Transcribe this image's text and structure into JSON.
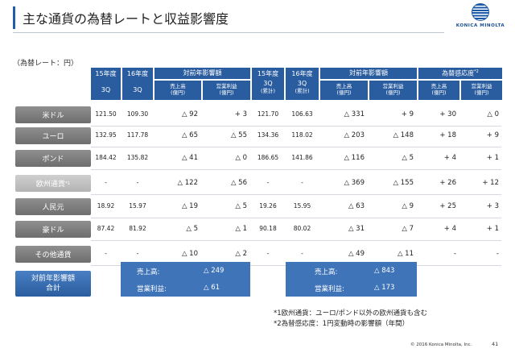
{
  "header": {
    "title": "主な通貨の為替レートと収益影響度",
    "logo_text": "KONICA MINOLTA"
  },
  "unit_note": "（為替レート：円）",
  "columns": {
    "fy15": "15年度",
    "fy16": "16年度",
    "q3": "3Q",
    "impact_yoy": "対前年影響額",
    "fy15c": "15年度",
    "fy16c": "16年度",
    "q3_cum": "3Q",
    "cum": "(累計)",
    "impact_yoy_cum": "対前年影響額",
    "sensitivity": "為替感応度",
    "sensitivity_sup": "*2",
    "sales": "売上高",
    "op_profit": "営業利益",
    "unit": "(億円)"
  },
  "rows": [
    {
      "label": "米ドル",
      "sup": "",
      "light": false,
      "r15": "121.50",
      "r16": "109.30",
      "s": "△ 92",
      "o": "+ 3",
      "c15": "121.70",
      "c16": "106.63",
      "cs": "△ 331",
      "co": "+ 9",
      "ss": "+ 30",
      "so": "△ 0"
    },
    {
      "label": "ユーロ",
      "sup": "",
      "light": false,
      "r15": "132.95",
      "r16": "117.78",
      "s": "△ 65",
      "o": "△ 55",
      "c15": "134.36",
      "c16": "118.02",
      "cs": "△ 203",
      "co": "△ 148",
      "ss": "+ 18",
      "so": "+ 9"
    },
    {
      "label": "ポンド",
      "sup": "",
      "light": false,
      "r15": "184.42",
      "r16": "135.82",
      "s": "△ 41",
      "o": "△ 0",
      "c15": "186.65",
      "c16": "141.86",
      "cs": "△ 116",
      "co": "△ 5",
      "ss": "+ 4",
      "so": "+ 1"
    },
    {
      "label": "欧州通貨",
      "sup": "*1",
      "light": true,
      "r15": "-",
      "r16": "-",
      "s": "△ 122",
      "o": "△ 56",
      "c15": "-",
      "c16": "-",
      "cs": "△ 369",
      "co": "△ 155",
      "ss": "+ 26",
      "so": "+ 12"
    },
    {
      "label": "人民元",
      "sup": "",
      "light": false,
      "r15": "18.92",
      "r16": "15.97",
      "s": "△ 19",
      "o": "△ 5",
      "c15": "19.26",
      "c16": "15.95",
      "cs": "△ 63",
      "co": "△ 9",
      "ss": "+ 25",
      "so": "+ 3"
    },
    {
      "label": "豪ドル",
      "sup": "",
      "light": false,
      "r15": "87.42",
      "r16": "81.92",
      "s": "△ 5",
      "o": "△ 1",
      "c15": "90.18",
      "c16": "80.02",
      "cs": "△ 31",
      "co": "△ 7",
      "ss": "+ 4",
      "so": "+ 1"
    },
    {
      "label": "その他通貨",
      "sup": "",
      "light": false,
      "r15": "-",
      "r16": "-",
      "s": "△ 10",
      "o": "△ 2",
      "c15": "-",
      "c16": "-",
      "cs": "△ 49",
      "co": "△ 11",
      "ss": "-",
      "so": "-"
    }
  ],
  "total": {
    "label_line1": "対前年影響額",
    "label_line2": "合計",
    "q_sales_label": "売上高:",
    "q_sales_value": "△ 249",
    "q_op_label": "営業利益:",
    "q_op_value": "△ 61",
    "cum_sales_label": "売上高:",
    "cum_sales_value": "△ 843",
    "cum_op_label": "営業利益:",
    "cum_op_value": "△ 173"
  },
  "footnotes": {
    "note1": "*1欧州通貨：ユーロ/ポンド以外の欧州通貨も含む",
    "note2": "*2為替感応度：1円変動時の影響額（年間）"
  },
  "footer": {
    "copyright": "© 2016 Konica Minolta, Inc.",
    "page_number": "41"
  },
  "colors": {
    "header_blue": "#2a5d9f",
    "label_gray": "#7a7a7a",
    "total_blue": "#3f74b8"
  }
}
